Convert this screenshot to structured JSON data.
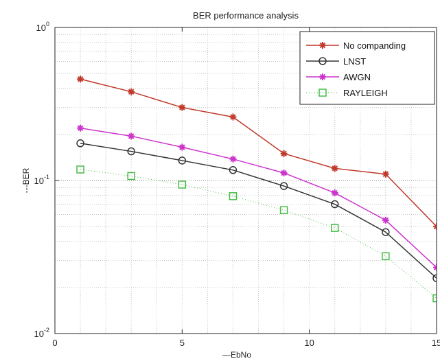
{
  "chart_data": {
    "type": "line",
    "title": "BER performance analysis",
    "xlabel": "—EbNo",
    "ylabel": "---BER",
    "xlim": [
      0,
      15
    ],
    "ylim": [
      0.01,
      1
    ],
    "yscale": "log",
    "grid": true,
    "legend_position": "top-right",
    "x_ticks": [
      "0",
      "5",
      "10",
      "15"
    ],
    "x_tick_values": [
      0,
      5,
      10,
      15
    ],
    "y_ticks": [
      {
        "base": "10",
        "exp": "0",
        "value": 1
      },
      {
        "base": "10",
        "exp": "-1",
        "value": 0.1
      },
      {
        "base": "10",
        "exp": "-2",
        "value": 0.01
      }
    ],
    "x": [
      1,
      3,
      5,
      7,
      9,
      11,
      13,
      15
    ],
    "series": [
      {
        "name": "No companding",
        "color": "#c0392b",
        "marker": "star",
        "line": "solid",
        "values": [
          0.46,
          0.38,
          0.3,
          0.26,
          0.15,
          0.12,
          0.11,
          0.05
        ]
      },
      {
        "name": "LNST",
        "color": "#333333",
        "marker": "circle",
        "line": "solid",
        "values": [
          0.175,
          0.155,
          0.135,
          0.117,
          0.092,
          0.07,
          0.046,
          0.023
        ]
      },
      {
        "name": "AWGN",
        "color": "#cc33cc",
        "marker": "star",
        "line": "solid",
        "values": [
          0.22,
          0.195,
          0.165,
          0.138,
          0.112,
          0.083,
          0.055,
          0.027
        ]
      },
      {
        "name": "RAYLEIGH",
        "color": "#44bb44",
        "marker": "square",
        "line": "dotted",
        "values": [
          0.118,
          0.107,
          0.094,
          0.079,
          0.064,
          0.049,
          0.032,
          0.017
        ]
      }
    ]
  }
}
